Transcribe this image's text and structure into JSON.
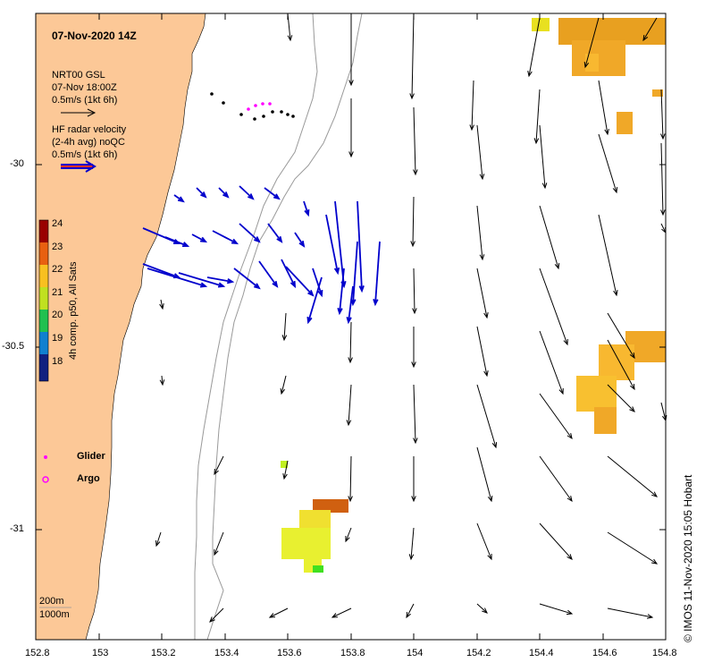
{
  "title": "07-Nov-2020 14Z",
  "legend": {
    "model_line1": "NRT00 GSL",
    "model_line2": "07-Nov 18:00Z",
    "model_scale": "0.5m/s (1kt 6h)",
    "radar_line1": "HF radar velocity",
    "radar_line2": "(2-4h avg) noQC",
    "radar_scale": "0.5m/s (1kt 6h)"
  },
  "colorbar": {
    "label": "4h comp. p50, All Sats",
    "ticks": [
      "24",
      "23",
      "22",
      "21",
      "20",
      "19",
      "18"
    ]
  },
  "markers": {
    "glider": "Glider",
    "argo": "Argo"
  },
  "isobaths": {
    "line1": "200m",
    "line2": "1000m"
  },
  "x_ticks": [
    "152.8",
    "153",
    "153.2",
    "153.4",
    "153.6",
    "153.8",
    "154",
    "154.2",
    "154.4",
    "154.6",
    "154.8"
  ],
  "y_ticks": [
    "-30",
    "-30.5",
    "-31"
  ],
  "credit": "© IMOS 11-Nov-2020 15:05 Hobart",
  "colors": {
    "land": "#FCC897",
    "radar_arrow": "#0000CC",
    "model_arrow": "#000000",
    "glider": "#FF00FF",
    "isobath": "#999999"
  }
}
